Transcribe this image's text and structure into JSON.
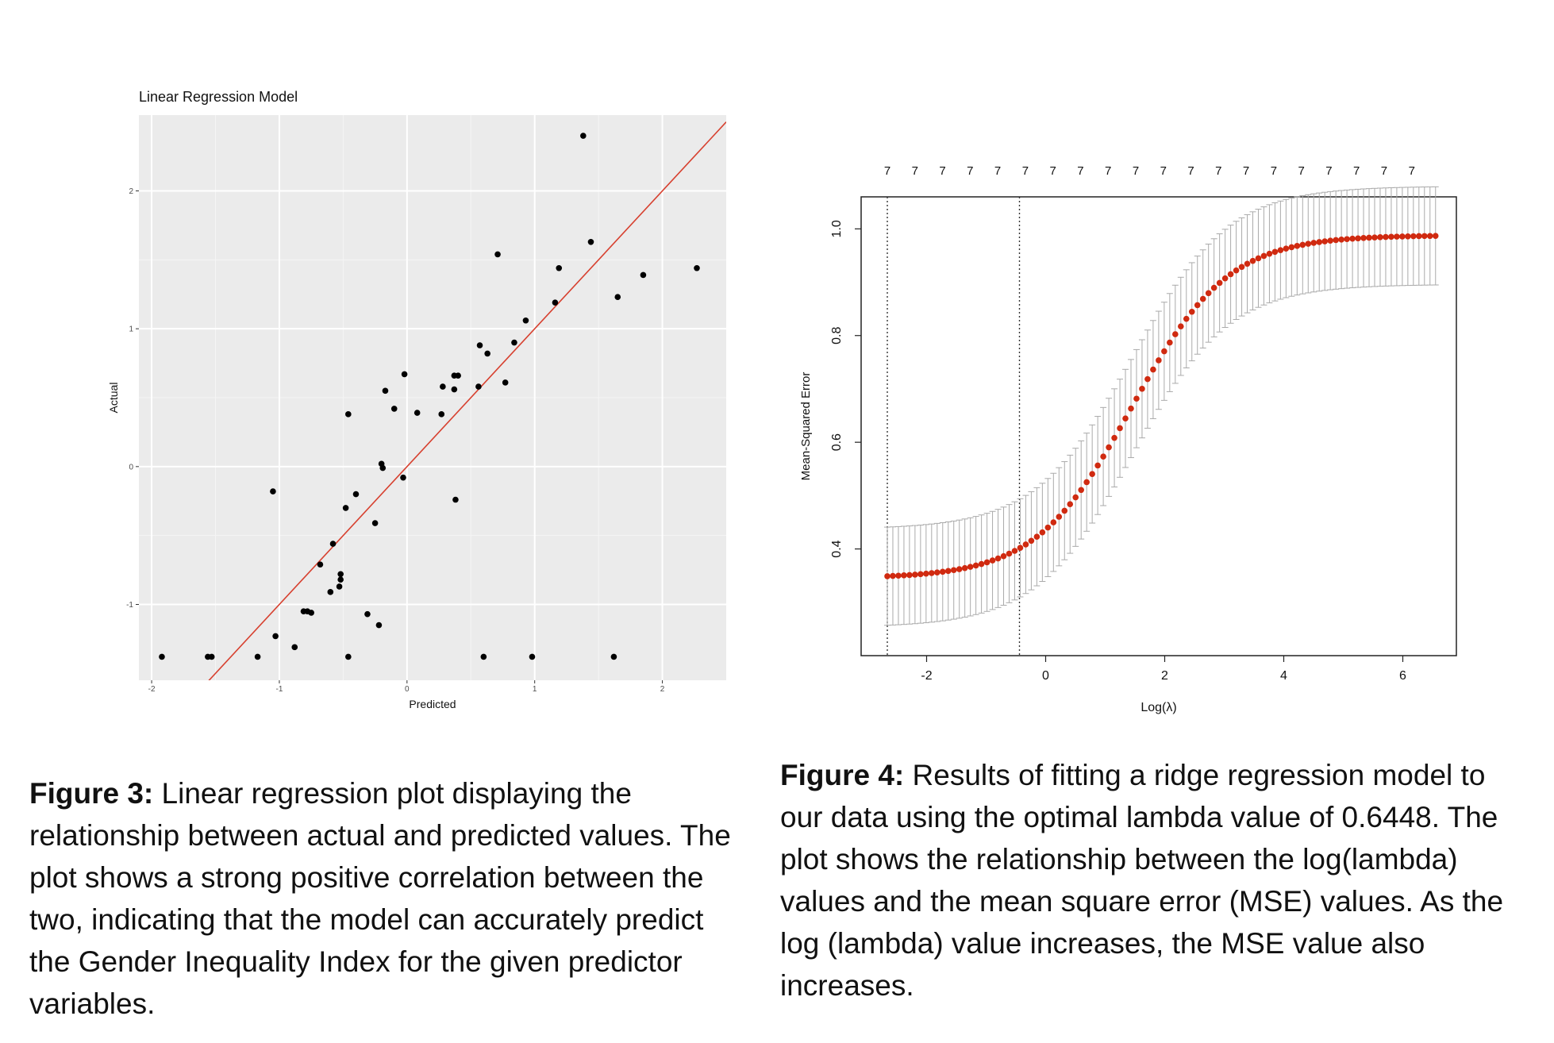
{
  "figure3": {
    "caption_label": "Figure 3:",
    "caption_text": " Linear regression plot displaying the relationship between actual and predicted values. The plot shows a strong positive correlation between the two, indicating that the model can accurately predict the Gender Inequality Index for the given predictor variables."
  },
  "figure4": {
    "caption_label": "Figure 4:",
    "caption_text": " Results of fitting a ridge regression model to our data using the optimal lambda value of 0.6448. The plot shows the relationship between the log(lambda) values and the mean square error (MSE) values. As the log (lambda) value increases, the MSE value also increases."
  },
  "chart_data": [
    {
      "type": "scatter",
      "title": "Linear Regression Model",
      "xlabel": "Predicted",
      "ylabel": "Actual",
      "xlim": [
        -2.1,
        2.5
      ],
      "ylim": [
        -1.55,
        2.55
      ],
      "xticks": [
        -2,
        -1,
        0,
        1,
        2
      ],
      "yticks": [
        -1,
        0,
        1,
        2
      ],
      "grid": true,
      "background": "#ebebeb",
      "point_color": "#000000",
      "line_color": "#d7402f",
      "fit_line": {
        "intercept": 0.0,
        "slope": 1.0
      },
      "points": [
        [
          -1.92,
          -1.38
        ],
        [
          -1.56,
          -1.38
        ],
        [
          -1.53,
          -1.38
        ],
        [
          -1.17,
          -1.38
        ],
        [
          -1.03,
          -1.23
        ],
        [
          -0.88,
          -1.31
        ],
        [
          -0.81,
          -1.05
        ],
        [
          -0.78,
          -1.05
        ],
        [
          -0.75,
          -1.06
        ],
        [
          -0.68,
          -0.71
        ],
        [
          -0.6,
          -0.91
        ],
        [
          -0.58,
          -0.56
        ],
        [
          -0.53,
          -0.87
        ],
        [
          -0.52,
          -0.82
        ],
        [
          -0.52,
          -0.78
        ],
        [
          -0.48,
          -0.3
        ],
        [
          -0.46,
          0.38
        ],
        [
          -0.46,
          -1.38
        ],
        [
          -0.4,
          -0.2
        ],
        [
          -0.31,
          -1.07
        ],
        [
          -0.25,
          -0.41
        ],
        [
          -0.22,
          -1.15
        ],
        [
          -0.2,
          0.02
        ],
        [
          -0.19,
          -0.01
        ],
        [
          -0.17,
          0.55
        ],
        [
          -0.1,
          0.42
        ],
        [
          -0.03,
          -0.08
        ],
        [
          -0.02,
          0.67
        ],
        [
          0.08,
          0.39
        ],
        [
          0.27,
          0.38
        ],
        [
          0.28,
          0.58
        ],
        [
          0.37,
          0.66
        ],
        [
          0.37,
          0.56
        ],
        [
          0.38,
          -0.24
        ],
        [
          0.4,
          0.66
        ],
        [
          0.56,
          0.58
        ],
        [
          0.57,
          0.88
        ],
        [
          0.6,
          -1.38
        ],
        [
          0.63,
          0.82
        ],
        [
          0.71,
          1.54
        ],
        [
          0.77,
          0.61
        ],
        [
          0.84,
          0.9
        ],
        [
          0.93,
          1.06
        ],
        [
          0.98,
          -1.38
        ],
        [
          1.16,
          1.19
        ],
        [
          1.19,
          1.44
        ],
        [
          1.38,
          2.4
        ],
        [
          1.44,
          1.63
        ],
        [
          1.62,
          -1.38
        ],
        [
          1.65,
          1.23
        ],
        [
          1.85,
          1.39
        ],
        [
          2.27,
          1.44
        ],
        [
          -1.05,
          -0.18
        ]
      ]
    },
    {
      "type": "line",
      "title": "",
      "xlabel": "Log(λ)",
      "ylabel": "Mean-Squared Error",
      "xlim": [
        -3.1,
        6.9
      ],
      "ylim": [
        0.2,
        1.06
      ],
      "xticks": [
        -2,
        0,
        2,
        4,
        6
      ],
      "yticks": [
        0.4,
        0.6,
        0.8,
        1.0
      ],
      "ytick_labels": [
        "0.4",
        "0.6",
        "0.8",
        "1.0"
      ],
      "grid": false,
      "top_axis_labels": [
        "7",
        "7",
        "7",
        "7",
        "7",
        "7",
        "7",
        "7",
        "7",
        "7",
        "7",
        "7",
        "7",
        "7",
        "7",
        "7",
        "7",
        "7",
        "7",
        "7"
      ],
      "vlines": [
        -2.66,
        -0.44
      ],
      "point_color": "#d02a10",
      "errorbar_color": "#aaaaaa",
      "series": [
        {
          "x_start": -2.66,
          "x_end": 6.55,
          "n_points": 100,
          "mse_min": 0.345,
          "mse_max": 0.988,
          "mse_mid_log_lambda": 1.45,
          "mse_steepness": 1.24,
          "se_width": 0.092
        }
      ]
    }
  ]
}
